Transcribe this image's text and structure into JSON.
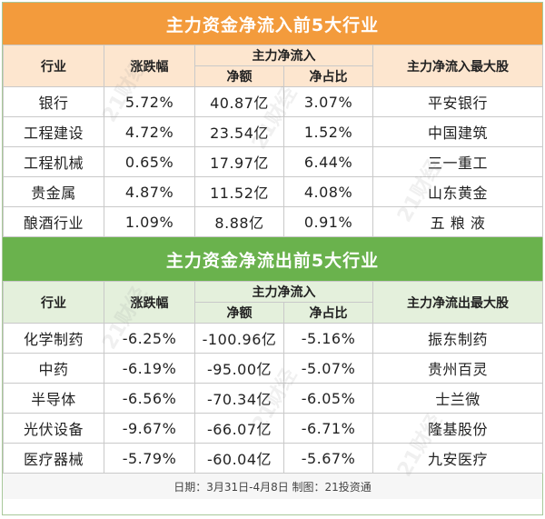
{
  "inflow": {
    "title": "主力资金净流入前5大行业",
    "headers": {
      "industry": "行业",
      "change": "涨跌幅",
      "group": "主力净流入",
      "amount": "净额",
      "ratio": "净占比",
      "top_stock": "主力净流入最大股"
    },
    "rows": [
      {
        "industry": "银行",
        "change": "5.72%",
        "amount": "40.87亿",
        "ratio": "3.07%",
        "stock": "平安银行"
      },
      {
        "industry": "工程建设",
        "change": "4.72%",
        "amount": "23.54亿",
        "ratio": "1.52%",
        "stock": "中国建筑"
      },
      {
        "industry": "工程机械",
        "change": "0.65%",
        "amount": "17.97亿",
        "ratio": "6.44%",
        "stock": "三一重工"
      },
      {
        "industry": "贵金属",
        "change": "4.87%",
        "amount": "11.52亿",
        "ratio": "4.08%",
        "stock": "山东黄金"
      },
      {
        "industry": "酿酒行业",
        "change": "1.09%",
        "amount": "8.88亿",
        "ratio": "0.91%",
        "stock": "五 粮 液"
      }
    ]
  },
  "outflow": {
    "title": "主力资金净流出前5大行业",
    "headers": {
      "industry": "行业",
      "change": "涨跌幅",
      "group": "主力净流入",
      "amount": "净额",
      "ratio": "净占比",
      "top_stock": "主力净流出最大股"
    },
    "rows": [
      {
        "industry": "化学制药",
        "change": "-6.25%",
        "amount": "-100.96亿",
        "ratio": "-5.16%",
        "stock": "振东制药"
      },
      {
        "industry": "中药",
        "change": "-6.19%",
        "amount": "-95.00亿",
        "ratio": "-5.07%",
        "stock": "贵州百灵"
      },
      {
        "industry": "半导体",
        "change": "-6.56%",
        "amount": "-70.34亿",
        "ratio": "-6.05%",
        "stock": "士兰微"
      },
      {
        "industry": "光伏设备",
        "change": "-9.67%",
        "amount": "-66.07亿",
        "ratio": "-6.71%",
        "stock": "隆基股份"
      },
      {
        "industry": "医疗器械",
        "change": "-5.79%",
        "amount": "-60.04亿",
        "ratio": "-5.67%",
        "stock": "九安医疗"
      }
    ]
  },
  "footer": "日期：3月31日-4月8日 制图：21投资通",
  "watermark": "21财经",
  "colors": {
    "inflow_banner": "#f39b3c",
    "inflow_header": "#fde6cf",
    "outflow_banner": "#6ab24d",
    "outflow_header": "#e4f0dc"
  }
}
